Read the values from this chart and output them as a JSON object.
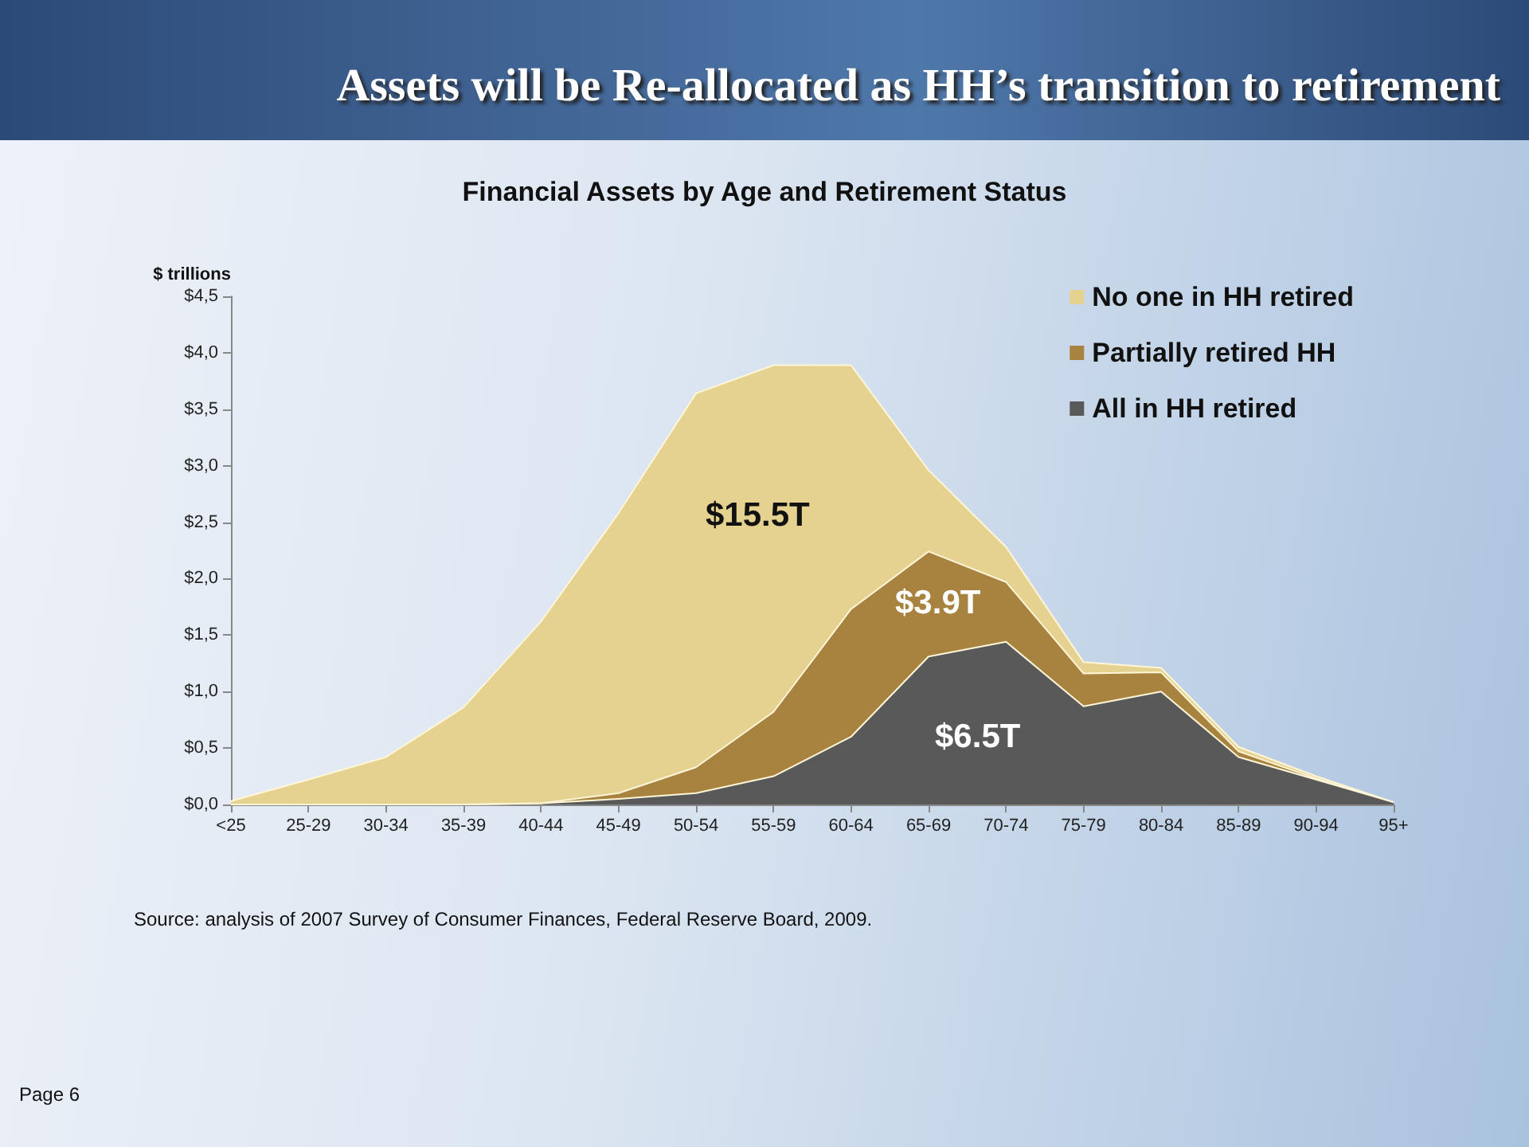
{
  "chart_data": {
    "type": "area",
    "stacked": true,
    "title": "Assets will be Re-allocated as HH’s transition to retirement",
    "subtitle": "Financial Assets by Age and Retirement Status",
    "ylabel": "$ trillions",
    "categories": [
      "<25",
      "25-29",
      "30-34",
      "35-39",
      "40-44",
      "45-49",
      "50-54",
      "55-59",
      "60-64",
      "65-69",
      "70-74",
      "75-79",
      "80-84",
      "85-89",
      "90-94",
      "95+"
    ],
    "series": [
      {
        "name": "All in HH retired",
        "color": "#595959",
        "values": [
          0,
          0,
          0,
          0,
          0.01,
          0.05,
          0.1,
          0.25,
          0.6,
          1.31,
          1.44,
          0.87,
          1.0,
          0.42,
          0.22,
          0.02
        ]
      },
      {
        "name": "Partially retired HH",
        "color": "#a8823f",
        "values": [
          0,
          0,
          0,
          0,
          0,
          0.05,
          0.23,
          0.57,
          1.13,
          0.93,
          0.53,
          0.29,
          0.17,
          0.05,
          0.01,
          0
        ]
      },
      {
        "name": "No one in HH retired",
        "color": "#e5d290",
        "values": [
          0.03,
          0.22,
          0.42,
          0.86,
          1.61,
          2.48,
          3.31,
          3.07,
          2.16,
          0.72,
          0.31,
          0.1,
          0.04,
          0.04,
          0.02,
          0
        ]
      }
    ],
    "ylim": [
      0,
      4.5
    ],
    "yticks": [
      {
        "value": 0,
        "label": "$0,0"
      },
      {
        "value": 0.5,
        "label": "$0,5"
      },
      {
        "value": 1,
        "label": "$1,0"
      },
      {
        "value": 1.5,
        "label": "$1,5"
      },
      {
        "value": 2,
        "label": "$2,0"
      },
      {
        "value": 2.5,
        "label": "$2,5"
      },
      {
        "value": 3,
        "label": "$3,0"
      },
      {
        "value": 3.5,
        "label": "$3,5"
      },
      {
        "value": 4,
        "label": "$4,0"
      },
      {
        "value": 4.5,
        "label": "$4,5"
      }
    ],
    "grid": false,
    "legend": "top right",
    "annotations": [
      "$15.5T",
      "$3.9T",
      "$6.5T",
      "Source: analysis of 2007 Survey of Consumer Finances, Federal Reserve Board, 2009.",
      "Page 6"
    ]
  }
}
